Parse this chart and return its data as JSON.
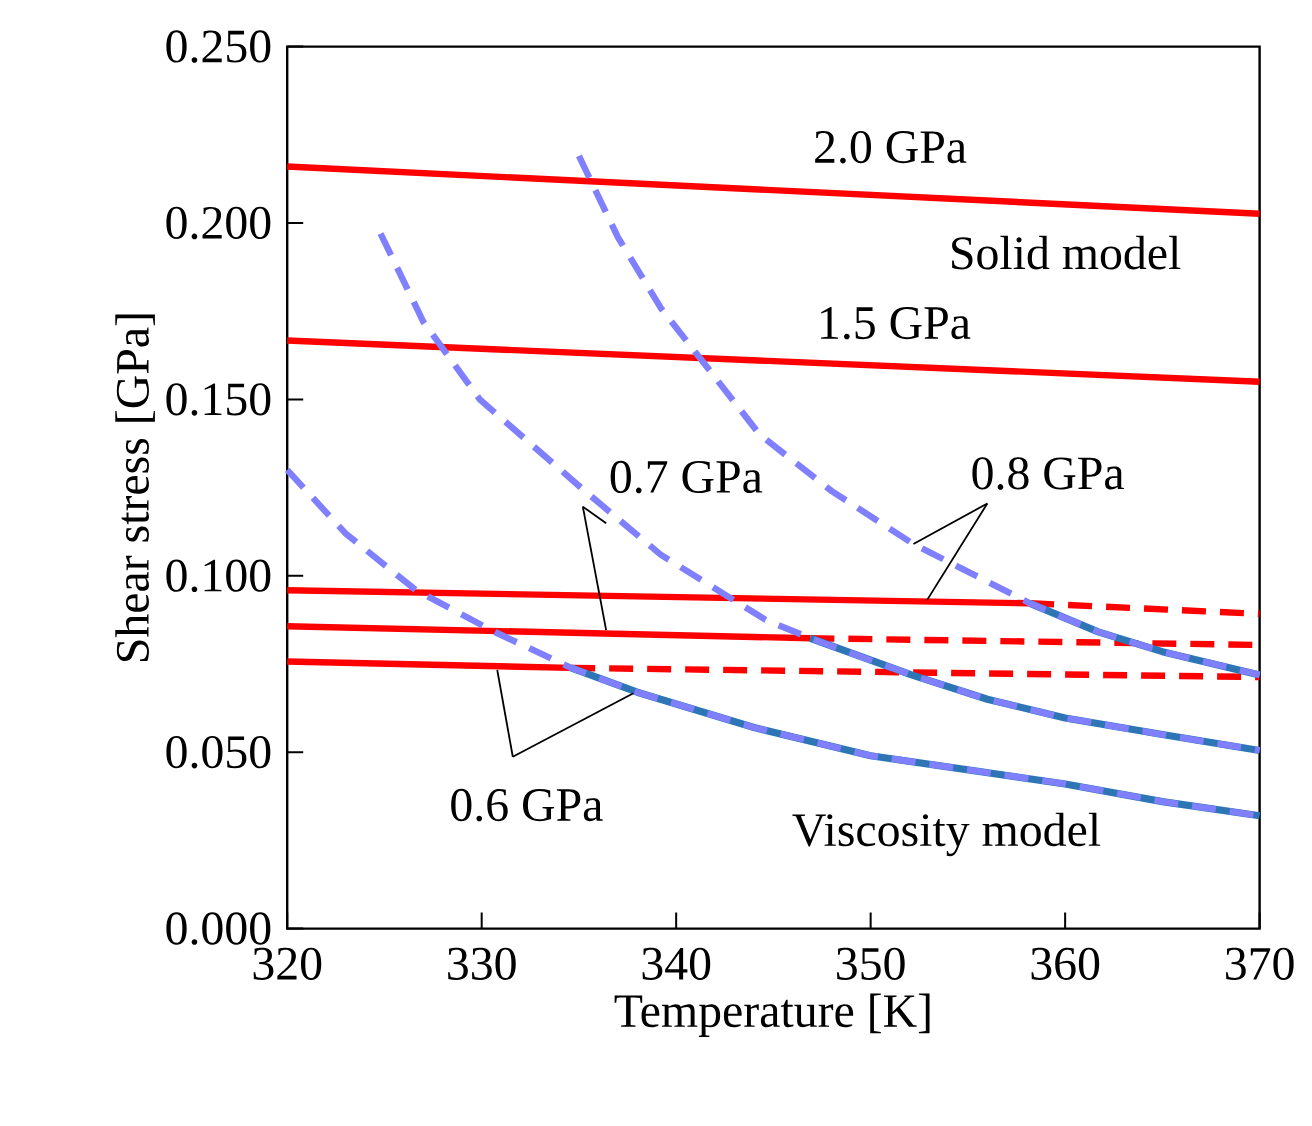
{
  "chart_data": {
    "type": "line",
    "xlabel": "Temperature [K]",
    "ylabel": "Shear stress [GPa]",
    "xlim": [
      320,
      370
    ],
    "ylim": [
      0,
      0.25
    ],
    "xticks": [
      320,
      330,
      340,
      350,
      360,
      370
    ],
    "yticks": [
      {
        "value": 0,
        "label": "0.000"
      },
      {
        "value": 0.05,
        "label": "0.050"
      },
      {
        "value": 0.1,
        "label": "0.100"
      },
      {
        "value": 0.15,
        "label": "0.150"
      },
      {
        "value": 0.2,
        "label": "0.200"
      },
      {
        "value": 0.25,
        "label": "0.250"
      }
    ],
    "marker": "none",
    "series": [
      {
        "color": "#ff0000",
        "line_style": "solid",
        "x": [
          320,
          370
        ],
        "values": [
          0.216,
          0.2026
        ]
      },
      {
        "color": "#ff0000",
        "line_style": "solid",
        "x": [
          320,
          370
        ],
        "values": [
          0.1667,
          0.155
        ]
      },
      {
        "color": "#ff0000",
        "line_style": "solid",
        "x": [
          320,
          358.2
        ],
        "values": [
          0.0959,
          0.0922
        ]
      },
      {
        "color": "#ff0000",
        "line_style": "dashed",
        "x": [
          358.2,
          370
        ],
        "values": [
          0.0922,
          0.0892
        ]
      },
      {
        "color": "#ff0000",
        "line_style": "solid",
        "x": [
          320,
          346.9
        ],
        "values": [
          0.0857,
          0.0823
        ]
      },
      {
        "color": "#ff0000",
        "line_style": "dashed",
        "x": [
          346.9,
          370
        ],
        "values": [
          0.0823,
          0.0804
        ]
      },
      {
        "color": "#ff0000",
        "line_style": "solid",
        "x": [
          320,
          334.6
        ],
        "values": [
          0.0757,
          0.0739
        ]
      },
      {
        "color": "#ff0000",
        "line_style": "dashed",
        "x": [
          334.6,
          370
        ],
        "values": [
          0.0739,
          0.0713
        ]
      },
      {
        "color": "#2e75b6",
        "line_style": "solid",
        "x": [
          334.6,
          338,
          344,
          350,
          355,
          360,
          365,
          370
        ],
        "values": [
          0.0739,
          0.067,
          0.057,
          0.049,
          0.045,
          0.041,
          0.036,
          0.032
        ]
      },
      {
        "color": "#2e75b6",
        "line_style": "solid",
        "x": [
          346.9,
          352.1,
          356,
          360,
          365,
          370
        ],
        "values": [
          0.0823,
          0.0719,
          0.065,
          0.0597,
          0.055,
          0.0505
        ]
      },
      {
        "color": "#2e75b6",
        "line_style": "solid",
        "x": [
          358.2,
          361.7,
          365,
          370
        ],
        "values": [
          0.0922,
          0.0841,
          0.0785,
          0.0719
        ]
      },
      {
        "color": "#8080ff",
        "line_style": "dashed",
        "x": [
          320,
          323,
          326.6,
          330.7,
          334.6,
          338,
          344,
          350,
          355,
          360,
          365,
          370
        ],
        "values": [
          0.13,
          0.112,
          0.096,
          0.084,
          0.0739,
          0.067,
          0.057,
          0.049,
          0.045,
          0.041,
          0.036,
          0.032
        ]
      },
      {
        "color": "#8080ff",
        "line_style": "dashed",
        "x": [
          324.8,
          327,
          329.9,
          335.1,
          339.2,
          344.6,
          346.9,
          352.1,
          356,
          360,
          365,
          370
        ],
        "values": [
          0.197,
          0.172,
          0.15,
          0.125,
          0.106,
          0.0875,
          0.0823,
          0.0719,
          0.065,
          0.0597,
          0.055,
          0.0505
        ]
      },
      {
        "color": "#8080ff",
        "line_style": "dashed",
        "x": [
          335,
          337,
          339.2,
          342.6,
          344.3,
          348,
          352.2,
          358.2,
          361.7,
          365,
          370
        ],
        "values": [
          0.219,
          0.196,
          0.176,
          0.152,
          0.14,
          0.124,
          0.109,
          0.0922,
          0.0841,
          0.0785,
          0.0719
        ]
      }
    ],
    "annotations": [
      {
        "text": "2.0 GPa",
        "x": 351,
        "y": 0.207
      },
      {
        "text": "1.5 GPa",
        "x": 351,
        "y": 0.159
      },
      "Solid model",
      {
        "text": "0.7 GPa",
        "x": 336.4,
        "y": 0.0846
      },
      {
        "text": "0.8 GPa",
        "x": 352.9,
        "y": 0.0931
      },
      {
        "text": "0.6 GPa",
        "x": 330.8,
        "y": 0.0733
      },
      "Viscosity model"
    ]
  }
}
